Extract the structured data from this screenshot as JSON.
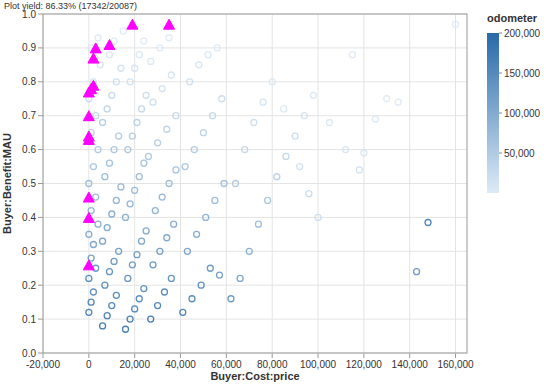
{
  "chart_data": {
    "type": "scatter",
    "title": "Plot yield: 86.33% (17342/20087)",
    "x_label": "Buyer:Cost:price",
    "y_label": "Buyer:Benefit:MAU",
    "xlim": [
      -20000,
      165000
    ],
    "ylim": [
      0,
      1
    ],
    "xticks": [
      {
        "value": -20000,
        "label": "-20,000"
      },
      0,
      {
        "value": 20000,
        "label": "20,000"
      },
      {
        "value": 40000,
        "label": "40,000"
      },
      {
        "value": 60000,
        "label": "60,000"
      },
      {
        "value": 80000,
        "label": "80,000"
      },
      {
        "value": 100000,
        "label": "100,000"
      },
      {
        "value": 120000,
        "label": "120,000"
      },
      {
        "value": 140000,
        "label": "140,000"
      },
      {
        "value": 160000,
        "label": "160,000"
      }
    ],
    "yticks": [
      {
        "value": 0,
        "label": "0.0"
      },
      0.1,
      0.2,
      0.3,
      0.4,
      0.5,
      0.6,
      0.7,
      0.8,
      0.9,
      {
        "value": 1,
        "label": "1.0"
      }
    ],
    "grid": true,
    "colorbar": {
      "label": "odometer",
      "range": [
        0,
        200000
      ],
      "ticks": [
        {
          "value": 50000,
          "label": "50,000"
        },
        {
          "value": 100000,
          "label": "100,000"
        },
        {
          "value": 150000,
          "label": "150,000"
        },
        {
          "value": 200000,
          "label": "200,000"
        }
      ]
    },
    "series": [
      {
        "marker": "circle",
        "x": [
          0,
          1000,
          2000,
          0,
          3000,
          1000,
          2000,
          0,
          4000,
          1000,
          3000,
          0,
          2000,
          4000,
          1000,
          3000,
          0,
          2000,
          5000,
          1000,
          4000,
          6000,
          8000,
          10000,
          12000,
          7000,
          9000,
          11000,
          13000,
          6000,
          8000,
          10000,
          12000,
          14000,
          7000,
          9000,
          11000,
          13000,
          6000,
          8000,
          10000,
          12000,
          14000,
          9000,
          11000,
          15000,
          16000,
          18000,
          20000,
          22000,
          24000,
          17000,
          19000,
          21000,
          23000,
          25000,
          16000,
          18000,
          20000,
          22000,
          24000,
          17000,
          19000,
          21000,
          23000,
          25000,
          18000,
          20000,
          22000,
          24000,
          27000,
          30000,
          33000,
          36000,
          28000,
          31000,
          34000,
          37000,
          29000,
          32000,
          35000,
          38000,
          26000,
          30000,
          34000,
          38000,
          28000,
          32000,
          36000,
          27000,
          31000,
          35000,
          41000,
          45000,
          49000,
          53000,
          57000,
          43000,
          47000,
          51000,
          55000,
          59000,
          42000,
          46000,
          50000,
          54000,
          58000,
          44000,
          48000,
          52000,
          56000,
          62000,
          66000,
          70000,
          74000,
          78000,
          82000,
          86000,
          90000,
          94000,
          98000,
          64000,
          68000,
          72000,
          76000,
          80000,
          85000,
          92000,
          96000,
          105000,
          112000,
          118000,
          120000,
          125000,
          130000,
          135000,
          143000,
          148000,
          160000,
          115000,
          100000
        ],
        "values": [
          0.12,
          0.15,
          0.18,
          0.22,
          0.25,
          0.28,
          0.32,
          0.35,
          0.38,
          0.42,
          0.46,
          0.5,
          0.55,
          0.6,
          0.65,
          0.7,
          0.75,
          0.8,
          0.85,
          0.9,
          0.93,
          0.08,
          0.11,
          0.14,
          0.17,
          0.2,
          0.24,
          0.27,
          0.3,
          0.33,
          0.37,
          0.41,
          0.45,
          0.49,
          0.52,
          0.56,
          0.6,
          0.64,
          0.68,
          0.72,
          0.76,
          0.8,
          0.84,
          0.88,
          0.92,
          0.95,
          0.07,
          0.1,
          0.13,
          0.16,
          0.19,
          0.22,
          0.26,
          0.29,
          0.33,
          0.36,
          0.4,
          0.44,
          0.48,
          0.52,
          0.56,
          0.6,
          0.64,
          0.68,
          0.72,
          0.76,
          0.8,
          0.84,
          0.88,
          0.92,
          0.1,
          0.14,
          0.18,
          0.22,
          0.26,
          0.3,
          0.34,
          0.38,
          0.42,
          0.46,
          0.5,
          0.54,
          0.58,
          0.62,
          0.66,
          0.7,
          0.74,
          0.78,
          0.82,
          0.86,
          0.9,
          0.93,
          0.12,
          0.16,
          0.2,
          0.25,
          0.23,
          0.3,
          0.35,
          0.4,
          0.45,
          0.5,
          0.55,
          0.6,
          0.65,
          0.7,
          0.75,
          0.8,
          0.85,
          0.88,
          0.9,
          0.16,
          0.22,
          0.3,
          0.38,
          0.45,
          0.52,
          0.58,
          0.64,
          0.7,
          0.76,
          0.5,
          0.6,
          0.68,
          0.74,
          0.8,
          0.72,
          0.55,
          0.47,
          0.68,
          0.6,
          0.54,
          0.59,
          0.69,
          0.75,
          0.74,
          0.24,
          0.385,
          0.97,
          0.88,
          0.4
        ],
        "odometer": [
          190000,
          180000,
          160000,
          170000,
          150000,
          140000,
          130000,
          120000,
          110000,
          100000,
          90000,
          85000,
          70000,
          60000,
          50000,
          40000,
          30000,
          20000,
          15000,
          10000,
          8000,
          200000,
          190000,
          185000,
          175000,
          165000,
          160000,
          150000,
          140000,
          135000,
          125000,
          115000,
          105000,
          95000,
          90000,
          80000,
          70000,
          60000,
          55000,
          45000,
          35000,
          25000,
          18000,
          12000,
          8000,
          5000,
          200000,
          195000,
          180000,
          170000,
          165000,
          155000,
          145000,
          140000,
          130000,
          120000,
          110000,
          100000,
          90000,
          85000,
          75000,
          65000,
          55000,
          50000,
          40000,
          30000,
          22000,
          15000,
          10000,
          6000,
          200000,
          185000,
          175000,
          160000,
          150000,
          140000,
          125000,
          115000,
          105000,
          95000,
          85000,
          75000,
          65000,
          55000,
          45000,
          35000,
          28000,
          20000,
          14000,
          10000,
          7000,
          4000,
          190000,
          175000,
          165000,
          150000,
          140000,
          130000,
          120000,
          105000,
          90000,
          80000,
          70000,
          60000,
          50000,
          40000,
          30000,
          22000,
          15000,
          10000,
          6000,
          150000,
          130000,
          110000,
          90000,
          70000,
          55000,
          40000,
          30000,
          20000,
          12000,
          60000,
          40000,
          25000,
          15000,
          10000,
          8000,
          20000,
          30000,
          10000,
          15000,
          20000,
          12000,
          8000,
          5000,
          6000,
          150000,
          185000,
          3000,
          4000,
          25000
        ]
      },
      {
        "marker": "triangle",
        "color": "#ff00ff",
        "x": [
          0,
          0,
          0,
          0,
          0,
          0,
          0,
          1000,
          2000,
          2000,
          3000,
          9000,
          19000,
          35000
        ],
        "values": [
          0.26,
          0.4,
          0.46,
          0.63,
          0.64,
          0.7,
          0.77,
          0.78,
          0.79,
          0.87,
          0.9,
          0.91,
          0.97,
          0.97
        ]
      }
    ]
  }
}
